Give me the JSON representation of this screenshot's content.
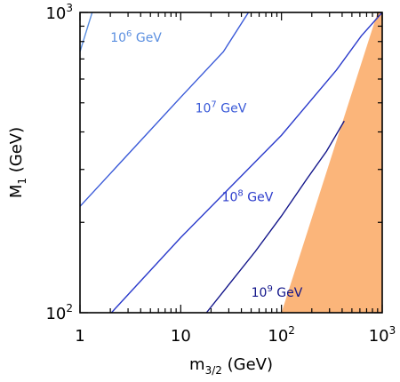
{
  "chart_data": {
    "type": "line",
    "xlabel": "m3/2 (GeV)",
    "ylabel": "M1 (GeV)",
    "x_scale": "log",
    "y_scale": "log",
    "xlim": [
      1,
      1000
    ],
    "ylim": [
      100,
      1000
    ],
    "x_ticks": [
      {
        "value": 1,
        "label": "1"
      },
      {
        "value": 10,
        "label": "10"
      },
      {
        "value": 100,
        "label": "10",
        "exp": "2"
      },
      {
        "value": 1000,
        "label": "10",
        "exp": "3"
      }
    ],
    "y_ticks": [
      {
        "value": 100,
        "label": "10",
        "exp": "2"
      },
      {
        "value": 1000,
        "label": "10",
        "exp": "3"
      }
    ],
    "grid": false,
    "legend": "none",
    "series": [
      {
        "label_base": "10",
        "label_exp": "6",
        "label_unit": "GeV",
        "color": "#5b8fe0",
        "label_at": [
          3.6,
          800
        ],
        "points": [
          [
            1,
            740
          ],
          [
            1.32,
            1000
          ]
        ]
      },
      {
        "label_base": "10",
        "label_exp": "7",
        "label_unit": "GeV",
        "color": "#3a5ad8",
        "label_at": [
          25,
          465
        ],
        "points": [
          [
            1,
            226
          ],
          [
            10,
            522
          ],
          [
            26.5,
            740
          ],
          [
            47,
            1000
          ]
        ]
      },
      {
        "label_base": "10",
        "label_exp": "8",
        "label_unit": "GeV",
        "color": "#2a3acb",
        "label_at": [
          46,
          235
        ],
        "points": [
          [
            2.05,
            100
          ],
          [
            10,
            178
          ],
          [
            100,
            390
          ],
          [
            350,
            642
          ],
          [
            620,
            835
          ],
          [
            1000,
            1000
          ]
        ]
      },
      {
        "label_base": "10",
        "label_exp": "9",
        "label_unit": "GeV",
        "color": "#12158a",
        "label_at": [
          90,
          113
        ],
        "points": [
          [
            18,
            100
          ],
          [
            30,
            124
          ],
          [
            55,
            160
          ],
          [
            100,
            210
          ],
          [
            180,
            280
          ],
          [
            280,
            345
          ],
          [
            420,
            435
          ]
        ]
      }
    ],
    "excluded_region": {
      "color": "#fbb57a",
      "points": [
        [
          100,
          100
        ],
        [
          900,
          1000
        ],
        [
          1000,
          1000
        ],
        [
          1000,
          100
        ]
      ]
    }
  }
}
